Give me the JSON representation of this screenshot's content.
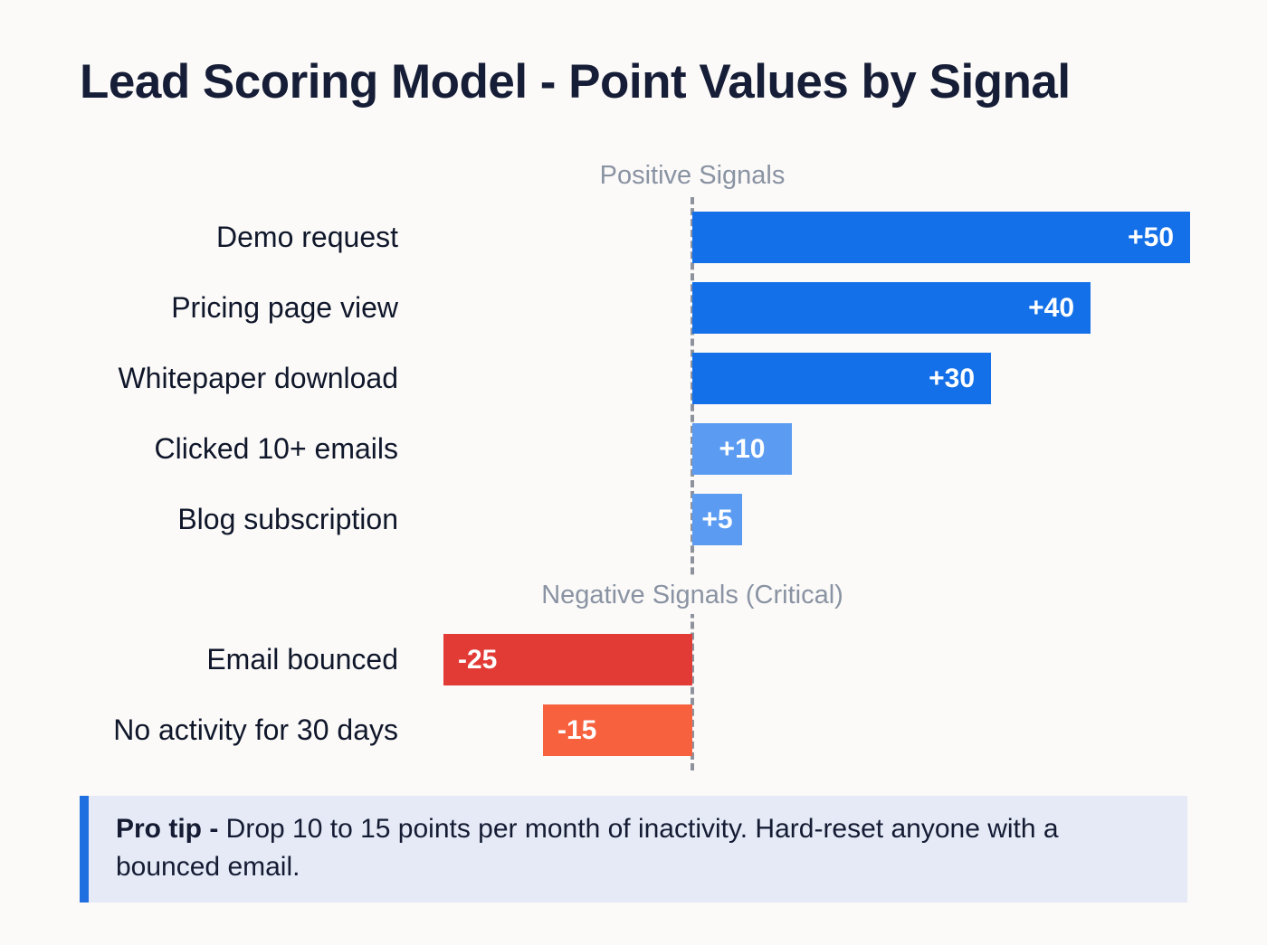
{
  "title": "Lead Scoring Model - Point Values by Signal",
  "chart_data": {
    "type": "bar",
    "orientation": "horizontal",
    "title": "Lead Scoring Model - Point Values by Signal",
    "xlabel": "",
    "ylabel": "",
    "axis": {
      "baseline_value": 0,
      "min": -50,
      "max": 50
    },
    "grid": false,
    "legend": false,
    "sections": [
      {
        "label": "Positive Signals",
        "bars": [
          {
            "category": "Demo request",
            "value": 50,
            "value_label": "+50",
            "color": "#1470E8"
          },
          {
            "category": "Pricing page view",
            "value": 40,
            "value_label": "+40",
            "color": "#1470E8"
          },
          {
            "category": "Whitepaper download",
            "value": 30,
            "value_label": "+30",
            "color": "#1470E8"
          },
          {
            "category": "Clicked 10+ emails",
            "value": 10,
            "value_label": "+10",
            "color": "#5B9CF2"
          },
          {
            "category": "Blog subscription",
            "value": 5,
            "value_label": "+5",
            "color": "#5B9CF2"
          }
        ]
      },
      {
        "label": "Negative Signals (Critical)",
        "bars": [
          {
            "category": "Email bounced",
            "value": -25,
            "value_label": "-25",
            "color": "#E23B36"
          },
          {
            "category": "No activity for 30 days",
            "value": -15,
            "value_label": "-15",
            "color": "#F7613E"
          }
        ]
      }
    ]
  },
  "pro_tip": {
    "label": "Pro tip -",
    "text": "Drop 10 to 15 points per month of inactivity. Hard-reset anyone with a bounced email."
  },
  "colors": {
    "background": "#FBFAF8",
    "title_text": "#161D36",
    "section_label_text": "#8A93A3",
    "baseline_dash": "#8D929C",
    "positive_strong": "#1470E8",
    "positive_light": "#5B9CF2",
    "negative_red": "#E23B36",
    "negative_orange": "#F7613E",
    "tip_background": "#E5EAF6",
    "tip_accent": "#1F6FE0"
  }
}
